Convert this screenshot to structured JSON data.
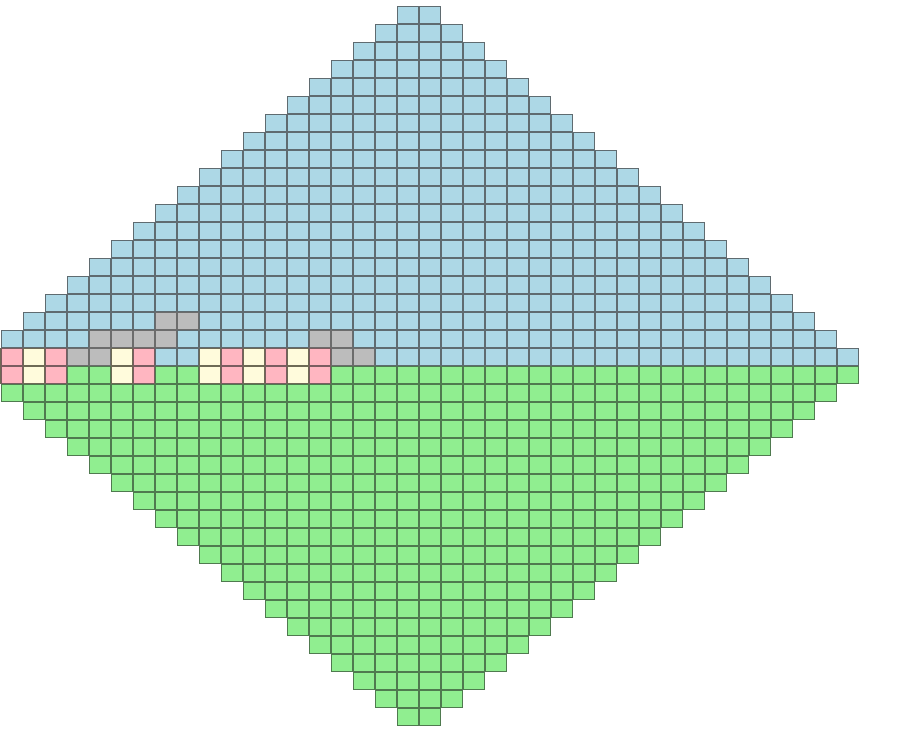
{
  "board": {
    "shape": "diamond",
    "rows": 40,
    "colors": {
      "sky": "#add8e6",
      "grass": "#90ee90",
      "stone": "#bcbcbc",
      "pink": "#ffb6c1",
      "cream": "#fffbdc"
    },
    "row_widths": [
      2,
      4,
      6,
      8,
      10,
      12,
      14,
      16,
      18,
      20,
      22,
      24,
      26,
      28,
      30,
      32,
      34,
      36,
      38,
      40,
      40,
      38,
      36,
      34,
      32,
      30,
      28,
      26,
      24,
      22,
      20,
      18,
      16,
      14,
      12,
      10,
      8,
      6,
      4,
      2
    ],
    "special_cells": [
      {
        "row": 17,
        "col": 6,
        "type": "stone"
      },
      {
        "row": 17,
        "col": 7,
        "type": "stone"
      },
      {
        "row": 18,
        "col": 4,
        "type": "stone"
      },
      {
        "row": 18,
        "col": 5,
        "type": "stone"
      },
      {
        "row": 18,
        "col": 6,
        "type": "stone"
      },
      {
        "row": 18,
        "col": 7,
        "type": "stone"
      },
      {
        "row": 18,
        "col": 14,
        "type": "stone"
      },
      {
        "row": 18,
        "col": 15,
        "type": "stone"
      },
      {
        "row": 19,
        "col": 0,
        "type": "cream"
      },
      {
        "row": 19,
        "col": 1,
        "type": "pink"
      },
      {
        "row": 19,
        "col": 2,
        "type": "cream"
      },
      {
        "row": 19,
        "col": 3,
        "type": "pink"
      },
      {
        "row": 19,
        "col": 4,
        "type": "stone"
      },
      {
        "row": 19,
        "col": 5,
        "type": "stone"
      },
      {
        "row": 19,
        "col": 6,
        "type": "cream"
      },
      {
        "row": 19,
        "col": 7,
        "type": "pink"
      },
      {
        "row": 19,
        "col": 10,
        "type": "cream"
      },
      {
        "row": 19,
        "col": 11,
        "type": "pink"
      },
      {
        "row": 19,
        "col": 12,
        "type": "cream"
      },
      {
        "row": 19,
        "col": 13,
        "type": "pink"
      },
      {
        "row": 19,
        "col": 14,
        "type": "cream"
      },
      {
        "row": 19,
        "col": 15,
        "type": "pink"
      },
      {
        "row": 19,
        "col": 16,
        "type": "stone"
      },
      {
        "row": 19,
        "col": 17,
        "type": "stone"
      },
      {
        "row": 20,
        "col": 0,
        "type": "cream"
      },
      {
        "row": 20,
        "col": 1,
        "type": "pink"
      },
      {
        "row": 20,
        "col": 2,
        "type": "cream"
      },
      {
        "row": 20,
        "col": 3,
        "type": "pink"
      },
      {
        "row": 20,
        "col": 6,
        "type": "cream"
      },
      {
        "row": 20,
        "col": 7,
        "type": "pink"
      },
      {
        "row": 20,
        "col": 10,
        "type": "cream"
      },
      {
        "row": 20,
        "col": 11,
        "type": "pink"
      },
      {
        "row": 20,
        "col": 12,
        "type": "cream"
      },
      {
        "row": 20,
        "col": 13,
        "type": "pink"
      },
      {
        "row": 20,
        "col": 14,
        "type": "cream"
      },
      {
        "row": 20,
        "col": 15,
        "type": "pink"
      }
    ]
  }
}
